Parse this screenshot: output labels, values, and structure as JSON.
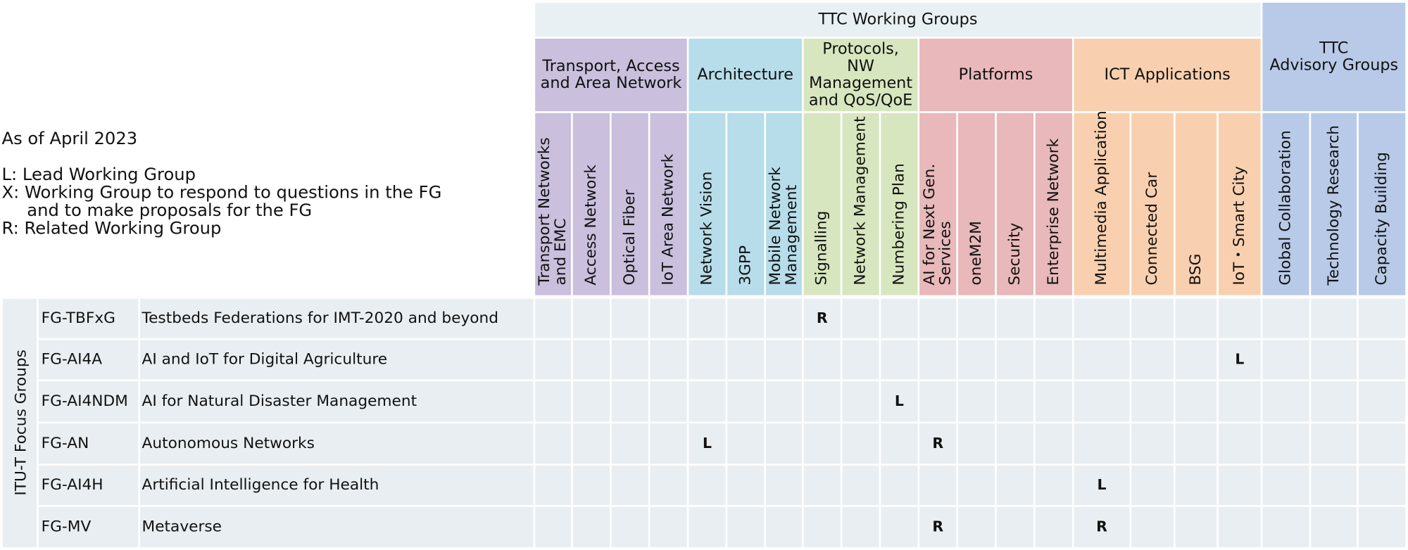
{
  "legend": {
    "lines": [
      "As of April 2023",
      "L: Lead Working Group",
      "X: Working Group to respond to questions in the FG",
      "and to make proposals for the FG",
      "R: Related Working Group"
    ]
  },
  "working_groups": {
    "title": "TTC Working Groups",
    "color": "#e8f0f4",
    "groups": [
      {
        "lines": [
          "Transport, Access",
          "and Area Network"
        ],
        "color": "#cabfdd",
        "columns": [
          {
            "lines": [
              "Transport Networks",
              "and EMC"
            ]
          },
          {
            "lines": [
              "Access Network"
            ]
          },
          {
            "lines": [
              "Optical Fiber"
            ]
          },
          {
            "lines": [
              "IoT Area Network"
            ]
          }
        ]
      },
      {
        "lines": [
          "Architecture"
        ],
        "color": "#b6dde9",
        "columns": [
          {
            "lines": [
              "Network Vision"
            ]
          },
          {
            "lines": [
              "3GPP"
            ]
          },
          {
            "lines": [
              "Mobile Network",
              "Management"
            ]
          }
        ]
      },
      {
        "lines": [
          "Protocols,",
          "NW",
          "Management",
          "and QoS/QoE"
        ],
        "color": "#d7e6be",
        "columns": [
          {
            "lines": [
              "Signalling"
            ]
          },
          {
            "lines": [
              "Network Management"
            ]
          },
          {
            "lines": [
              "Numbering Plan"
            ]
          }
        ]
      },
      {
        "lines": [
          "Platforms"
        ],
        "color": "#e8b8ba",
        "columns": [
          {
            "lines": [
              "AI for Next Gen.",
              "Services"
            ]
          },
          {
            "lines": [
              "oneM2M"
            ]
          },
          {
            "lines": [
              "Security"
            ]
          },
          {
            "lines": [
              "Enterprise Network"
            ]
          }
        ]
      },
      {
        "lines": [
          "ICT Applications"
        ],
        "color": "#f9d0af",
        "columns": [
          {
            "lines": [
              "Multimedia Application"
            ]
          },
          {
            "lines": [
              "Connected Car"
            ]
          },
          {
            "lines": [
              "BSG"
            ]
          },
          {
            "lines": [
              "IoT・Smart City"
            ]
          }
        ]
      }
    ]
  },
  "advisory_groups": {
    "lines": [
      "TTC",
      "Advisory Groups"
    ],
    "color": "#b8cae7",
    "columns": [
      {
        "lines": [
          "Global Collaboration"
        ]
      },
      {
        "lines": [
          "Technology Research"
        ]
      },
      {
        "lines": [
          "Capacity Building"
        ]
      }
    ]
  },
  "focus_groups": {
    "label": "ITU-T Focus Groups",
    "color": "#e8eef2",
    "rows": [
      {
        "code": "FG-TBFxG",
        "name": "Testbeds Federations for IMT-2020 and beyond",
        "cells": [
          null,
          null,
          null,
          null,
          null,
          null,
          null,
          "R",
          null,
          null,
          null,
          null,
          null,
          null,
          null,
          null,
          null,
          null,
          null,
          null,
          null
        ]
      },
      {
        "code": "FG-AI4A",
        "name": "AI and IoT for Digital Agriculture",
        "cells": [
          null,
          null,
          null,
          null,
          null,
          null,
          null,
          null,
          null,
          null,
          null,
          null,
          null,
          null,
          null,
          null,
          null,
          "L",
          null,
          null,
          null
        ]
      },
      {
        "code": "FG-AI4NDM",
        "name": "AI for Natural Disaster Management",
        "cells": [
          null,
          null,
          null,
          null,
          null,
          null,
          null,
          null,
          null,
          "L",
          null,
          null,
          null,
          null,
          null,
          null,
          null,
          null,
          null,
          null,
          null
        ]
      },
      {
        "code": "FG-AN",
        "name": "Autonomous Networks",
        "cells": [
          null,
          null,
          null,
          null,
          "L",
          null,
          null,
          null,
          null,
          null,
          "R",
          null,
          null,
          null,
          null,
          null,
          null,
          null,
          null,
          null,
          null
        ]
      },
      {
        "code": "FG-AI4H",
        "name": "Artificial Intelligence for Health",
        "cells": [
          null,
          null,
          null,
          null,
          null,
          null,
          null,
          null,
          null,
          null,
          null,
          null,
          null,
          null,
          "L",
          null,
          null,
          null,
          null,
          null,
          null
        ]
      },
      {
        "code": "FG-MV",
        "name": "Metaverse",
        "cells": [
          null,
          null,
          null,
          null,
          null,
          null,
          null,
          null,
          null,
          null,
          "R",
          null,
          null,
          null,
          "R",
          null,
          null,
          null,
          null,
          null,
          null
        ]
      }
    ]
  }
}
